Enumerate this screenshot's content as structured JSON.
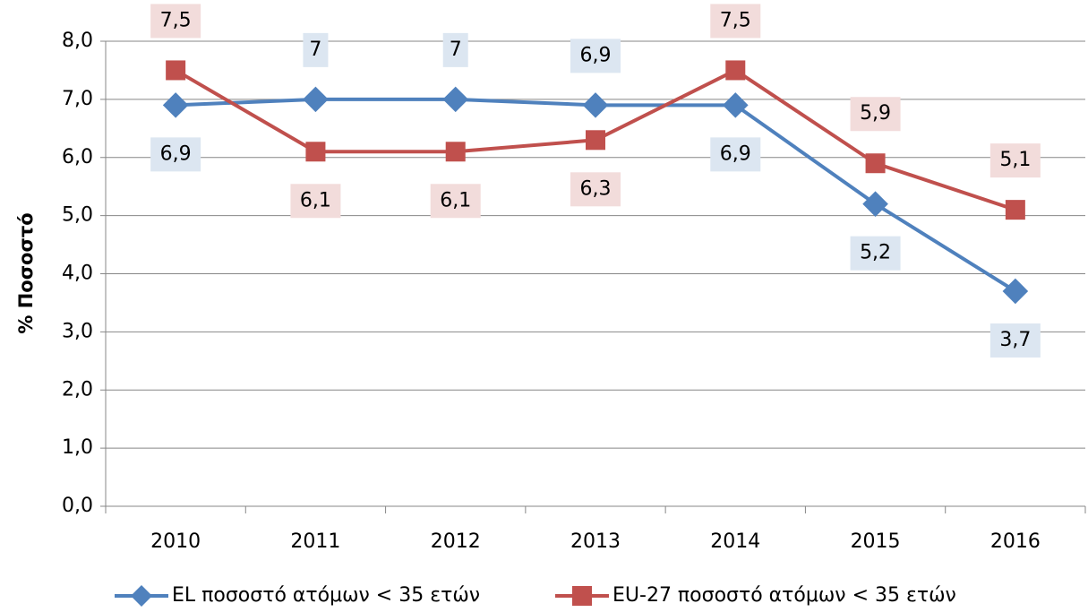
{
  "chart_data": {
    "type": "line",
    "y_label": "% Ποσοστό",
    "categories": [
      "2010",
      "2011",
      "2012",
      "2013",
      "2014",
      "2015",
      "2016"
    ],
    "series": [
      {
        "name": "EL ποσοστό ατόμων < 35 ετών",
        "color": "#4f81bd",
        "marker": "diamond",
        "values": [
          6.9,
          7,
          7,
          6.9,
          6.9,
          5.2,
          3.7
        ],
        "value_labels": [
          "6,9",
          "7",
          "7",
          "6,9",
          "6,9",
          "5,2",
          "3,7"
        ]
      },
      {
        "name": "EU-27 ποσοστό ατόμων < 35 ετών",
        "color": "#c0504d",
        "marker": "square",
        "values": [
          7.5,
          6.1,
          6.1,
          6.3,
          7.5,
          5.9,
          5.1
        ],
        "value_labels": [
          "7,5",
          "6,1",
          "6,1",
          "6,3",
          "7,5",
          "5,9",
          "5,1"
        ]
      }
    ],
    "ylim": [
      0,
      8
    ],
    "yticks": [
      {
        "value": 0,
        "label": "0,0"
      },
      {
        "value": 1,
        "label": "1,0"
      },
      {
        "value": 2,
        "label": "2,0"
      },
      {
        "value": 3,
        "label": "3,0"
      },
      {
        "value": 4,
        "label": "4,0"
      },
      {
        "value": 5,
        "label": "5,0"
      },
      {
        "value": 6,
        "label": "6,0"
      },
      {
        "value": 7,
        "label": "7,0"
      },
      {
        "value": 8,
        "label": "8,0"
      }
    ],
    "grid": true
  }
}
